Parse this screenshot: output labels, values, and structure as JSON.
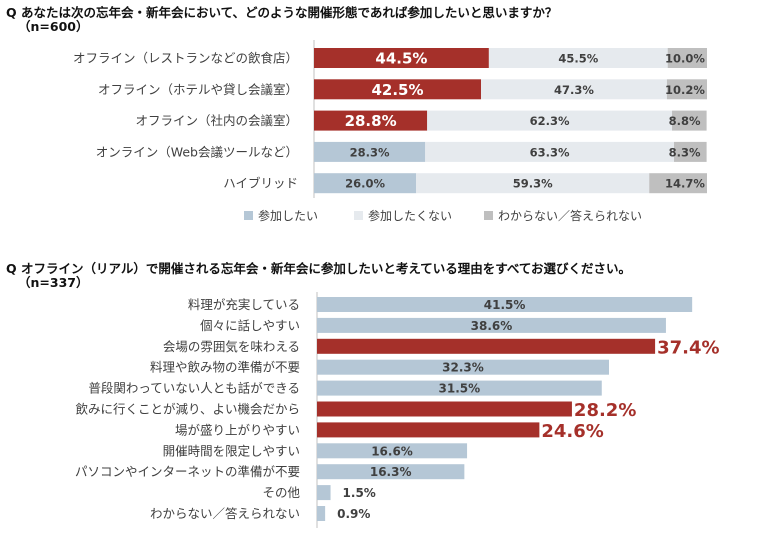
{
  "colors": {
    "want": "#a5302a",
    "light_bar": "#b5c7d6",
    "no": "#e6eaee",
    "unknown": "#bfbfbf",
    "axis": "#c0c0c0",
    "big_label": "#a5302a"
  },
  "chart_data": [
    {
      "type": "bar",
      "stacked": true,
      "orientation": "horizontal",
      "title": "Q あなたは次の忘年会・新年会において、どのような開催形態であれば参加したいと思いますか？",
      "subtitle": "（n=600）",
      "categories": [
        "オフライン（レストランなどの飲食店）",
        "オフライン（ホテルや貸し会議室）",
        "オフライン（社内の会議室）",
        "オンライン（Web会議ツールなど）",
        "ハイブリッド"
      ],
      "series": [
        {
          "name": "参加したい",
          "values": [
            44.5,
            42.5,
            28.8,
            28.3,
            26.0
          ],
          "labels": [
            "44.5%",
            "42.5%",
            "28.8%",
            "28.3%",
            "26.0%"
          ]
        },
        {
          "name": "参加したくない",
          "values": [
            45.5,
            47.3,
            62.3,
            63.3,
            59.3
          ],
          "labels": [
            "45.5%",
            "47.3%",
            "62.3%",
            "63.3%",
            "59.3%"
          ]
        },
        {
          "name": "わからない／答えられない",
          "values": [
            10.0,
            10.2,
            8.8,
            8.3,
            14.7
          ],
          "labels": [
            "10.0%",
            "10.2%",
            "8.8%",
            "8.3%",
            "14.7%"
          ]
        }
      ],
      "highlight_rows": [
        0,
        1,
        2
      ],
      "xlim": [
        0,
        100
      ],
      "legend": "bottom"
    },
    {
      "type": "bar",
      "orientation": "horizontal",
      "title": "Q オフライン（リアル）で開催される忘年会・新年会に参加したいと考えている理由をすべてお選びください。",
      "subtitle": "（n=337）",
      "categories": [
        "料理が充実している",
        "個々に話しやすい",
        "会場の雰囲気を味わえる",
        "料理や飲み物の準備が不要",
        "普段関わっていない人とも話ができる",
        "飲みに行くことが減り、よい機会だから",
        "場が盛り上がりやすい",
        "開催時間を限定しやすい",
        "パソコンやインターネットの準備が不要",
        "その他",
        "わからない／答えられない"
      ],
      "values": [
        41.5,
        38.6,
        37.4,
        32.3,
        31.5,
        28.2,
        24.6,
        16.6,
        16.3,
        1.5,
        0.9
      ],
      "labels": [
        "41.5%",
        "38.6%",
        "37.4%",
        "32.3%",
        "31.5%",
        "28.2%",
        "24.6%",
        "16.6%",
        "16.3%",
        "1.5%",
        "0.9%"
      ],
      "highlight_rows": [
        2,
        5,
        6
      ]
    }
  ]
}
